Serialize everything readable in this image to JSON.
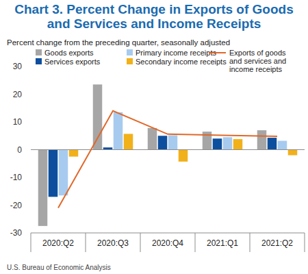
{
  "chart_data": {
    "type": "bar",
    "title": "Chart 3. Percent Change in Exports of Goods and Services and Income Receipts",
    "subtitle": "Percent change from the preceding quarter, seasonally adjusted",
    "source": "U.S. Bureau of Economic Analysis",
    "categories": [
      "2020:Q2",
      "2020:Q3",
      "2020:Q4",
      "2021:Q1",
      "2021:Q2"
    ],
    "series": [
      {
        "name": "Goods exports",
        "color": "#a6a6a6",
        "values": [
          -27.5,
          23.5,
          7.8,
          6.5,
          7.0
        ]
      },
      {
        "name": "Services exports",
        "color": "#0d4f9e",
        "values": [
          -17.0,
          0.8,
          5.0,
          4.0,
          4.3
        ]
      },
      {
        "name": "Primary income receipts",
        "color": "#a7cbef",
        "values": [
          -16.5,
          13.5,
          5.2,
          4.5,
          3.2
        ]
      },
      {
        "name": "Secondary income receipts",
        "color": "#f1b11b",
        "values": [
          -2.5,
          5.7,
          -4.3,
          3.8,
          -2.0
        ]
      },
      {
        "name": "Exports of goods and services and income receipts",
        "color": "#e0682a",
        "type": "line",
        "values": [
          -21.0,
          14.0,
          5.6,
          5.2,
          4.8
        ]
      }
    ],
    "ylim": [
      -30,
      30
    ],
    "yticks": [
      -30,
      -20,
      -10,
      0,
      10,
      20,
      30
    ],
    "grid": false,
    "legend": "top"
  }
}
